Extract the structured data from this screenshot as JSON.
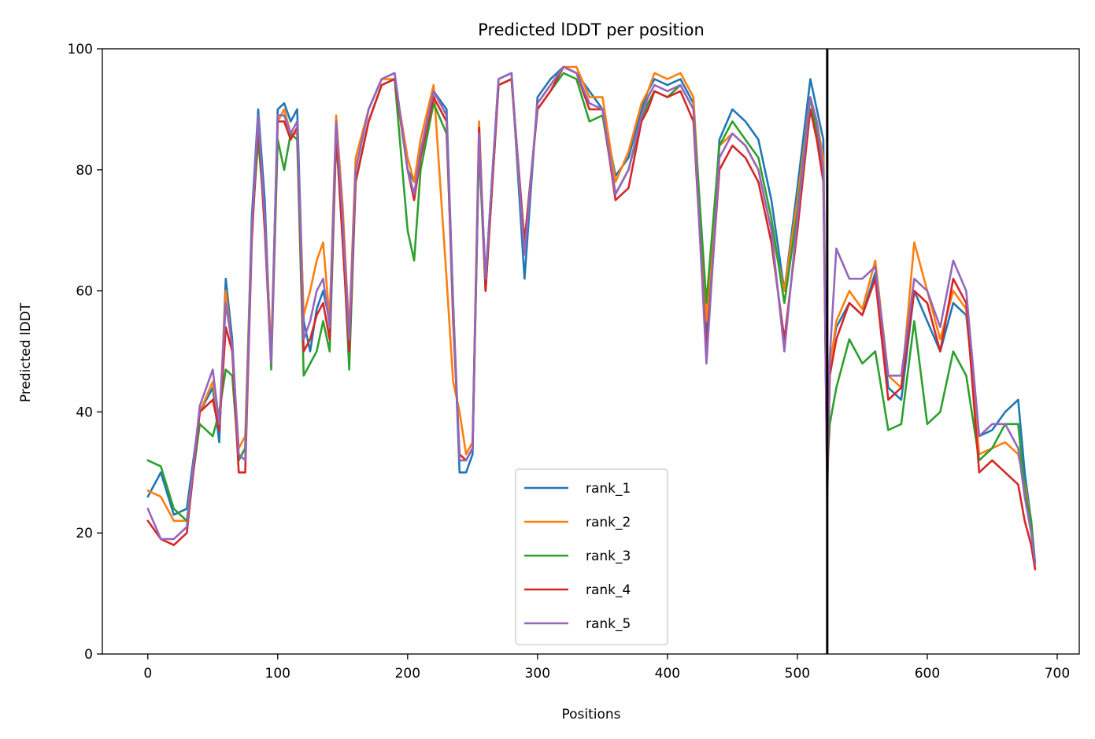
{
  "chart_data": {
    "type": "line",
    "title": "Predicted lDDT per position",
    "xlabel": "Positions",
    "ylabel": "Predicted lDDT",
    "xlim": [
      -35,
      717
    ],
    "ylim": [
      0,
      100
    ],
    "xticks": [
      0,
      100,
      200,
      300,
      400,
      500,
      600,
      700
    ],
    "yticks": [
      0,
      20,
      40,
      60,
      80,
      100
    ],
    "grid": false,
    "legend_position": "lower center",
    "vline": 523,
    "x": [
      0,
      10,
      20,
      30,
      40,
      50,
      55,
      60,
      65,
      70,
      75,
      80,
      85,
      90,
      95,
      100,
      105,
      110,
      115,
      120,
      125,
      130,
      135,
      140,
      145,
      150,
      155,
      160,
      170,
      180,
      190,
      200,
      205,
      210,
      220,
      230,
      235,
      240,
      245,
      250,
      255,
      260,
      270,
      280,
      290,
      300,
      310,
      320,
      330,
      340,
      350,
      360,
      370,
      380,
      385,
      390,
      400,
      410,
      420,
      430,
      440,
      450,
      460,
      470,
      480,
      490,
      500,
      510,
      515,
      520,
      523,
      525,
      530,
      540,
      550,
      560,
      570,
      580,
      590,
      600,
      610,
      620,
      630,
      640,
      650,
      660,
      670,
      675,
      680,
      683
    ],
    "series": [
      {
        "name": "rank_1",
        "color": "#1f77b4",
        "values": [
          26,
          30,
          23,
          24,
          40,
          44,
          35,
          62,
          52,
          32,
          34,
          72,
          90,
          75,
          48,
          90,
          91,
          88,
          90,
          55,
          50,
          57,
          60,
          55,
          87,
          72,
          50,
          80,
          90,
          95,
          96,
          80,
          78,
          83,
          93,
          90,
          58,
          30,
          30,
          33,
          85,
          62,
          95,
          96,
          62,
          92,
          95,
          97,
          96,
          93,
          90,
          79,
          82,
          90,
          93,
          95,
          94,
          95,
          91,
          53,
          85,
          90,
          88,
          85,
          75,
          60,
          77,
          95,
          90,
          85,
          25,
          48,
          54,
          58,
          56,
          63,
          44,
          42,
          60,
          55,
          50,
          58,
          56,
          36,
          37,
          40,
          42,
          30,
          22,
          15
        ]
      },
      {
        "name": "rank_2",
        "color": "#ff7f0e",
        "values": [
          27,
          26,
          22,
          22,
          40,
          45,
          38,
          60,
          50,
          34,
          36,
          70,
          87,
          72,
          50,
          88,
          90,
          86,
          86,
          56,
          60,
          65,
          68,
          55,
          89,
          74,
          53,
          82,
          90,
          95,
          95,
          82,
          78,
          85,
          94,
          62,
          45,
          40,
          33,
          35,
          88,
          60,
          94,
          95,
          66,
          91,
          94,
          97,
          97,
          92,
          92,
          78,
          83,
          91,
          93,
          96,
          95,
          96,
          92,
          55,
          84,
          86,
          84,
          80,
          70,
          60,
          75,
          92,
          88,
          82,
          30,
          47,
          55,
          60,
          57,
          65,
          46,
          44,
          68,
          60,
          52,
          60,
          57,
          33,
          34,
          35,
          33,
          28,
          22,
          14
        ]
      },
      {
        "name": "rank_3",
        "color": "#2ca02c",
        "values": [
          32,
          31,
          24,
          22,
          38,
          36,
          40,
          47,
          46,
          32,
          34,
          70,
          85,
          72,
          47,
          85,
          80,
          86,
          85,
          46,
          48,
          50,
          55,
          50,
          85,
          70,
          47,
          78,
          88,
          94,
          95,
          70,
          65,
          80,
          91,
          86,
          58,
          32,
          32,
          34,
          84,
          60,
          94,
          95,
          68,
          90,
          93,
          96,
          95,
          88,
          89,
          76,
          80,
          88,
          91,
          93,
          92,
          94,
          90,
          58,
          84,
          88,
          85,
          82,
          72,
          58,
          73,
          92,
          86,
          80,
          30,
          38,
          44,
          52,
          48,
          50,
          37,
          38,
          55,
          38,
          40,
          50,
          46,
          32,
          34,
          38,
          38,
          27,
          22,
          15
        ]
      },
      {
        "name": "rank_4",
        "color": "#d62728",
        "values": [
          22,
          19,
          18,
          20,
          40,
          42,
          37,
          54,
          50,
          30,
          30,
          68,
          88,
          70,
          48,
          88,
          88,
          85,
          87,
          50,
          52,
          56,
          58,
          52,
          86,
          68,
          50,
          78,
          88,
          94,
          95,
          80,
          75,
          82,
          92,
          88,
          55,
          33,
          32,
          34,
          87,
          60,
          94,
          95,
          68,
          90,
          93,
          97,
          96,
          90,
          90,
          75,
          77,
          88,
          90,
          93,
          92,
          93,
          88,
          50,
          80,
          84,
          82,
          78,
          68,
          52,
          70,
          90,
          85,
          78,
          28,
          46,
          52,
          58,
          56,
          62,
          42,
          44,
          60,
          58,
          50,
          62,
          58,
          30,
          32,
          30,
          28,
          22,
          18,
          14
        ]
      },
      {
        "name": "rank_5",
        "color": "#9467bd",
        "values": [
          24,
          19,
          19,
          21,
          41,
          47,
          38,
          58,
          51,
          33,
          32,
          70,
          89,
          72,
          48,
          89,
          89,
          86,
          88,
          52,
          55,
          60,
          62,
          54,
          88,
          72,
          52,
          80,
          90,
          95,
          96,
          80,
          76,
          83,
          93,
          89,
          57,
          32,
          32,
          34,
          86,
          62,
          95,
          96,
          66,
          91,
          94,
          97,
          96,
          91,
          90,
          76,
          80,
          89,
          92,
          94,
          93,
          94,
          90,
          48,
          82,
          86,
          84,
          80,
          70,
          50,
          72,
          92,
          88,
          80,
          30,
          49,
          67,
          62,
          62,
          64,
          46,
          46,
          62,
          60,
          54,
          65,
          60,
          36,
          38,
          38,
          34,
          26,
          20,
          15
        ]
      }
    ]
  }
}
